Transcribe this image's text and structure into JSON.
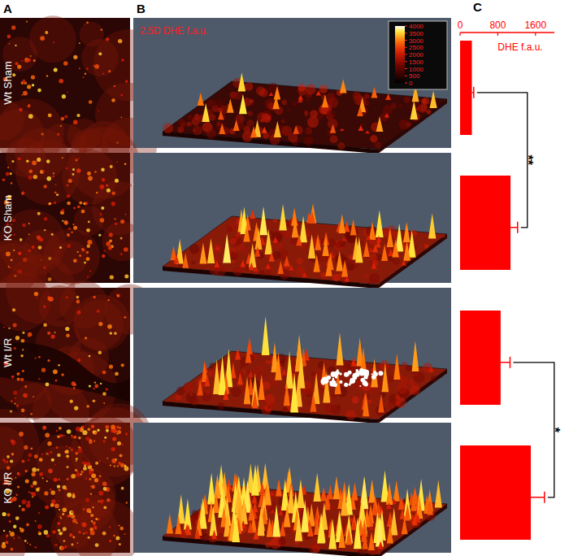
{
  "chart_data": {
    "type": "bar",
    "orientation": "horizontal",
    "panel_labels": [
      "A",
      "B",
      "C"
    ],
    "categories": [
      "Wt Sham",
      "KO Sham",
      "Wt I/R",
      "KO I/R"
    ],
    "values": [
      250,
      1070,
      860,
      1500
    ],
    "errors": [
      40,
      150,
      200,
      290
    ],
    "color": "#ff0000",
    "xlabel": "DHE f.a.u.",
    "xlim": [
      0,
      2000
    ],
    "xticks": [
      0,
      800,
      1600
    ],
    "surface_title": "2.5D DHE f.a.u.",
    "colorbar_range": [
      0,
      4000
    ],
    "colorbar_ticks": [
      0,
      500,
      1000,
      1500,
      2000,
      2500,
      3000,
      3500,
      4000
    ],
    "annotations": [
      {
        "text": "**",
        "between": [
          0,
          1
        ]
      },
      {
        "text": "*",
        "between": [
          2,
          3
        ]
      }
    ]
  }
}
